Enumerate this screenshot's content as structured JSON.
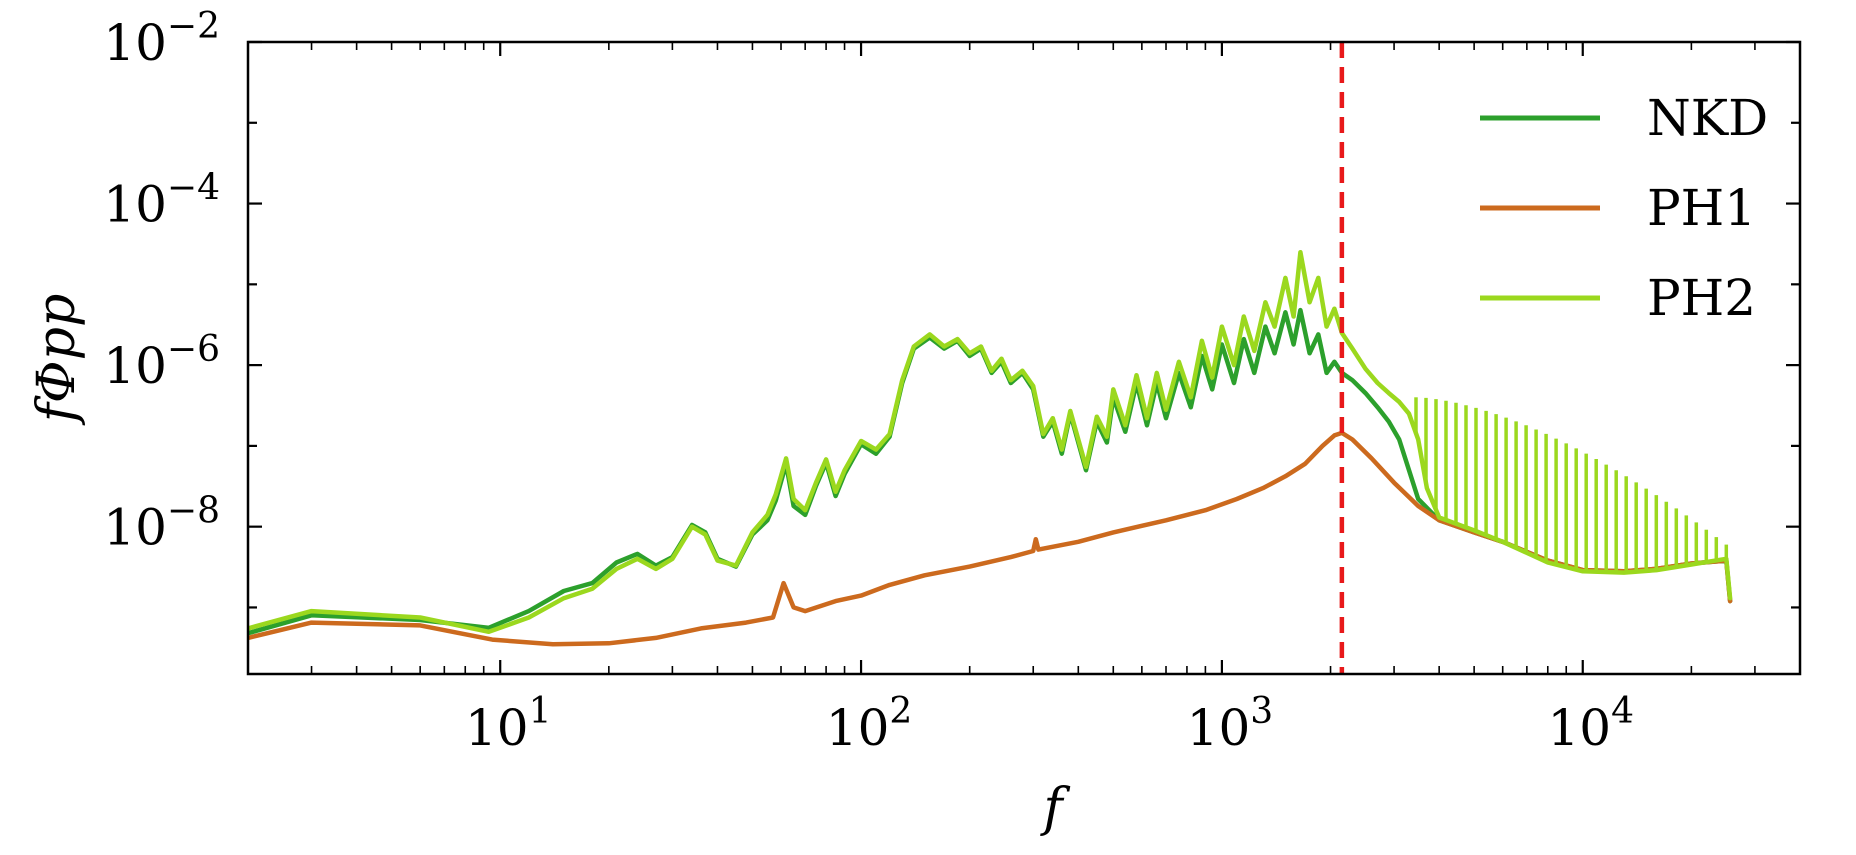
{
  "chart_data": {
    "type": "line",
    "xlabel": "f",
    "ylabel": "fΦpp",
    "xscale": "log",
    "yscale": "log",
    "xlim": [
      2,
      40000
    ],
    "ylim": [
      1.5e-10,
      0.01
    ],
    "x_ticks": [
      {
        "value": 10,
        "base": "10",
        "exp": "1"
      },
      {
        "value": 100,
        "base": "10",
        "exp": "2"
      },
      {
        "value": 1000,
        "base": "10",
        "exp": "3"
      },
      {
        "value": 10000,
        "base": "10",
        "exp": "4"
      }
    ],
    "y_ticks": [
      {
        "value": 1e-08,
        "base": "10",
        "exp": "−8"
      },
      {
        "value": 1e-06,
        "base": "10",
        "exp": "−6"
      },
      {
        "value": 0.0001,
        "base": "10",
        "exp": "−4"
      },
      {
        "value": 0.01,
        "base": "10",
        "exp": "−2"
      }
    ],
    "legend_position": "top-right",
    "vline": {
      "x": 2150,
      "color": "#e8191a",
      "style": "dashed"
    },
    "series": [
      {
        "name": "NKD",
        "color": "#2ca02c",
        "points": [
          [
            2,
            4.8e-10
          ],
          [
            3,
            8e-10
          ],
          [
            6,
            7e-10
          ],
          [
            9.3,
            5.6e-10
          ],
          [
            12,
            9e-10
          ],
          [
            15,
            1.6e-09
          ],
          [
            18,
            2e-09
          ],
          [
            21,
            3.6e-09
          ],
          [
            24,
            4.6e-09
          ],
          [
            27,
            3.3e-09
          ],
          [
            30,
            4.2e-09
          ],
          [
            34,
            1.05e-08
          ],
          [
            37,
            8.5e-09
          ],
          [
            40,
            4e-09
          ],
          [
            45,
            3.2e-09
          ],
          [
            50,
            8e-09
          ],
          [
            55,
            1.2e-08
          ],
          [
            58,
            2.1e-08
          ],
          [
            62,
            6e-08
          ],
          [
            65,
            1.8e-08
          ],
          [
            70,
            1.4e-08
          ],
          [
            75,
            3.2e-08
          ],
          [
            80,
            6.2e-08
          ],
          [
            85,
            2.4e-08
          ],
          [
            90,
            4.5e-08
          ],
          [
            100,
            1.05e-07
          ],
          [
            110,
            8e-08
          ],
          [
            120,
            1.3e-07
          ],
          [
            130,
            6e-07
          ],
          [
            140,
            1.6e-06
          ],
          [
            155,
            2.2e-06
          ],
          [
            170,
            1.6e-06
          ],
          [
            185,
            2e-06
          ],
          [
            200,
            1.3e-06
          ],
          [
            215,
            1.6e-06
          ],
          [
            230,
            8e-07
          ],
          [
            245,
            1.1e-06
          ],
          [
            260,
            6e-07
          ],
          [
            280,
            8e-07
          ],
          [
            300,
            5e-07
          ],
          [
            320,
            1.3e-07
          ],
          [
            340,
            2e-07
          ],
          [
            360,
            8e-08
          ],
          [
            380,
            2.5e-07
          ],
          [
            400,
            1.1e-07
          ],
          [
            420,
            5e-08
          ],
          [
            450,
            2e-07
          ],
          [
            480,
            1.1e-07
          ],
          [
            500,
            4e-07
          ],
          [
            540,
            1.5e-07
          ],
          [
            580,
            6e-07
          ],
          [
            620,
            1.8e-07
          ],
          [
            660,
            6e-07
          ],
          [
            700,
            2.2e-07
          ],
          [
            760,
            8e-07
          ],
          [
            820,
            3e-07
          ],
          [
            880,
            1.3e-06
          ],
          [
            940,
            5e-07
          ],
          [
            1000,
            1.8e-06
          ],
          [
            1080,
            6e-07
          ],
          [
            1150,
            2.1e-06
          ],
          [
            1230,
            8e-07
          ],
          [
            1320,
            3e-06
          ],
          [
            1400,
            1.4e-06
          ],
          [
            1500,
            4.5e-06
          ],
          [
            1580,
            1.8e-06
          ],
          [
            1650,
            4.8e-06
          ],
          [
            1750,
            1.4e-06
          ],
          [
            1850,
            2.4e-06
          ],
          [
            1950,
            8e-07
          ],
          [
            2050,
            1.1e-06
          ],
          [
            2150,
            8e-07
          ],
          [
            2300,
            6.5e-07
          ],
          [
            2500,
            4.5e-07
          ],
          [
            2700,
            3e-07
          ],
          [
            2900,
            2e-07
          ],
          [
            3100,
            1.2e-07
          ],
          [
            3300,
            5e-08
          ],
          [
            3500,
            2.2e-08
          ],
          [
            4000,
            1.2e-08
          ],
          [
            5000,
            8.5e-09
          ],
          [
            6000,
            6.5e-09
          ],
          [
            8000,
            3.8e-09
          ],
          [
            10000,
            2.9e-09
          ],
          [
            13000,
            2.8e-09
          ],
          [
            16000,
            3e-09
          ],
          [
            20000,
            3.5e-09
          ],
          [
            25000,
            3.8e-09
          ],
          [
            25600,
            1.2e-09
          ]
        ]
      },
      {
        "name": "PH1",
        "color": "#cc6a1e",
        "points": [
          [
            2,
            4.2e-10
          ],
          [
            3,
            6.5e-10
          ],
          [
            6,
            6e-10
          ],
          [
            9.5,
            4e-10
          ],
          [
            14,
            3.5e-10
          ],
          [
            20,
            3.6e-10
          ],
          [
            27,
            4.2e-10
          ],
          [
            36,
            5.5e-10
          ],
          [
            48,
            6.5e-10
          ],
          [
            57,
            7.5e-10
          ],
          [
            61,
            2e-09
          ],
          [
            65,
            1e-09
          ],
          [
            70,
            9e-10
          ],
          [
            85,
            1.2e-09
          ],
          [
            100,
            1.4e-09
          ],
          [
            120,
            1.9e-09
          ],
          [
            150,
            2.5e-09
          ],
          [
            200,
            3.2e-09
          ],
          [
            260,
            4.2e-09
          ],
          [
            300,
            5e-09
          ],
          [
            305,
            7e-09
          ],
          [
            310,
            5.2e-09
          ],
          [
            400,
            6.5e-09
          ],
          [
            500,
            8.5e-09
          ],
          [
            700,
            1.2e-08
          ],
          [
            900,
            1.6e-08
          ],
          [
            1100,
            2.2e-08
          ],
          [
            1300,
            3e-08
          ],
          [
            1500,
            4.2e-08
          ],
          [
            1700,
            6e-08
          ],
          [
            1900,
            1e-07
          ],
          [
            2050,
            1.35e-07
          ],
          [
            2150,
            1.45e-07
          ],
          [
            2300,
            1.2e-07
          ],
          [
            2600,
            7e-08
          ],
          [
            3000,
            3.5e-08
          ],
          [
            3500,
            1.8e-08
          ],
          [
            4000,
            1.2e-08
          ],
          [
            5000,
            8.5e-09
          ],
          [
            6000,
            6.5e-09
          ],
          [
            8000,
            3.8e-09
          ],
          [
            10000,
            2.9e-09
          ],
          [
            13000,
            2.8e-09
          ],
          [
            16000,
            3e-09
          ],
          [
            20000,
            3.5e-09
          ],
          [
            25000,
            3.8e-09
          ],
          [
            25600,
            1.2e-09
          ]
        ]
      },
      {
        "name": "PH2",
        "color": "#9bd81e",
        "points": [
          [
            2,
            5.5e-10
          ],
          [
            3,
            9e-10
          ],
          [
            6,
            7.5e-10
          ],
          [
            9.3,
            5e-10
          ],
          [
            12,
            7.5e-10
          ],
          [
            15,
            1.3e-09
          ],
          [
            18,
            1.7e-09
          ],
          [
            21,
            3e-09
          ],
          [
            24,
            4e-09
          ],
          [
            27,
            3e-09
          ],
          [
            30,
            4e-09
          ],
          [
            34,
            1e-08
          ],
          [
            37,
            8e-09
          ],
          [
            40,
            3.8e-09
          ],
          [
            45,
            3.3e-09
          ],
          [
            50,
            8.5e-09
          ],
          [
            55,
            1.4e-08
          ],
          [
            58,
            2.5e-08
          ],
          [
            62,
            7e-08
          ],
          [
            65,
            2.2e-08
          ],
          [
            70,
            1.6e-08
          ],
          [
            75,
            3.5e-08
          ],
          [
            80,
            6.8e-08
          ],
          [
            85,
            2.7e-08
          ],
          [
            90,
            5e-08
          ],
          [
            100,
            1.15e-07
          ],
          [
            110,
            9e-08
          ],
          [
            120,
            1.4e-07
          ],
          [
            130,
            6.5e-07
          ],
          [
            140,
            1.7e-06
          ],
          [
            155,
            2.4e-06
          ],
          [
            170,
            1.7e-06
          ],
          [
            185,
            2.1e-06
          ],
          [
            200,
            1.4e-06
          ],
          [
            215,
            1.7e-06
          ],
          [
            230,
            8.5e-07
          ],
          [
            245,
            1.2e-06
          ],
          [
            260,
            6.5e-07
          ],
          [
            280,
            8.5e-07
          ],
          [
            300,
            5.5e-07
          ],
          [
            320,
            1.4e-07
          ],
          [
            340,
            2.2e-07
          ],
          [
            360,
            9e-08
          ],
          [
            380,
            2.7e-07
          ],
          [
            400,
            1.2e-07
          ],
          [
            420,
            5.5e-08
          ],
          [
            450,
            2.3e-07
          ],
          [
            480,
            1.3e-07
          ],
          [
            500,
            5e-07
          ],
          [
            540,
            1.8e-07
          ],
          [
            580,
            7.5e-07
          ],
          [
            620,
            2.2e-07
          ],
          [
            660,
            8e-07
          ],
          [
            700,
            2.8e-07
          ],
          [
            760,
            1.1e-06
          ],
          [
            820,
            4e-07
          ],
          [
            880,
            2e-06
          ],
          [
            940,
            7e-07
          ],
          [
            1000,
            3e-06
          ],
          [
            1080,
            1e-06
          ],
          [
            1150,
            4e-06
          ],
          [
            1230,
            1.5e-06
          ],
          [
            1320,
            6e-06
          ],
          [
            1400,
            3e-06
          ],
          [
            1500,
            1.2e-05
          ],
          [
            1580,
            4e-06
          ],
          [
            1650,
            2.5e-05
          ],
          [
            1750,
            6e-06
          ],
          [
            1850,
            1.2e-05
          ],
          [
            1950,
            3e-06
          ],
          [
            2050,
            5e-06
          ],
          [
            2150,
            2.5e-06
          ],
          [
            2300,
            1.6e-06
          ],
          [
            2500,
            9e-07
          ],
          [
            2700,
            6e-07
          ],
          [
            2900,
            4.5e-07
          ],
          [
            3100,
            3.5e-07
          ],
          [
            3300,
            2.5e-07
          ],
          [
            3500,
            1.2e-07
          ],
          [
            3700,
            3e-08
          ],
          [
            4000,
            1.3e-08
          ],
          [
            5000,
            9e-09
          ],
          [
            6000,
            6.5e-09
          ],
          [
            8000,
            3.6e-09
          ],
          [
            10000,
            2.8e-09
          ],
          [
            13000,
            2.7e-09
          ],
          [
            16000,
            2.9e-09
          ],
          [
            20000,
            3.4e-09
          ],
          [
            25000,
            4e-09
          ],
          [
            25600,
            1.3e-09
          ]
        ],
        "spike_range": [
          3450,
          25000
        ],
        "spike_count": 32,
        "spike_peak_start": 4e-07,
        "spike_peak_end": 6e-09
      }
    ]
  }
}
